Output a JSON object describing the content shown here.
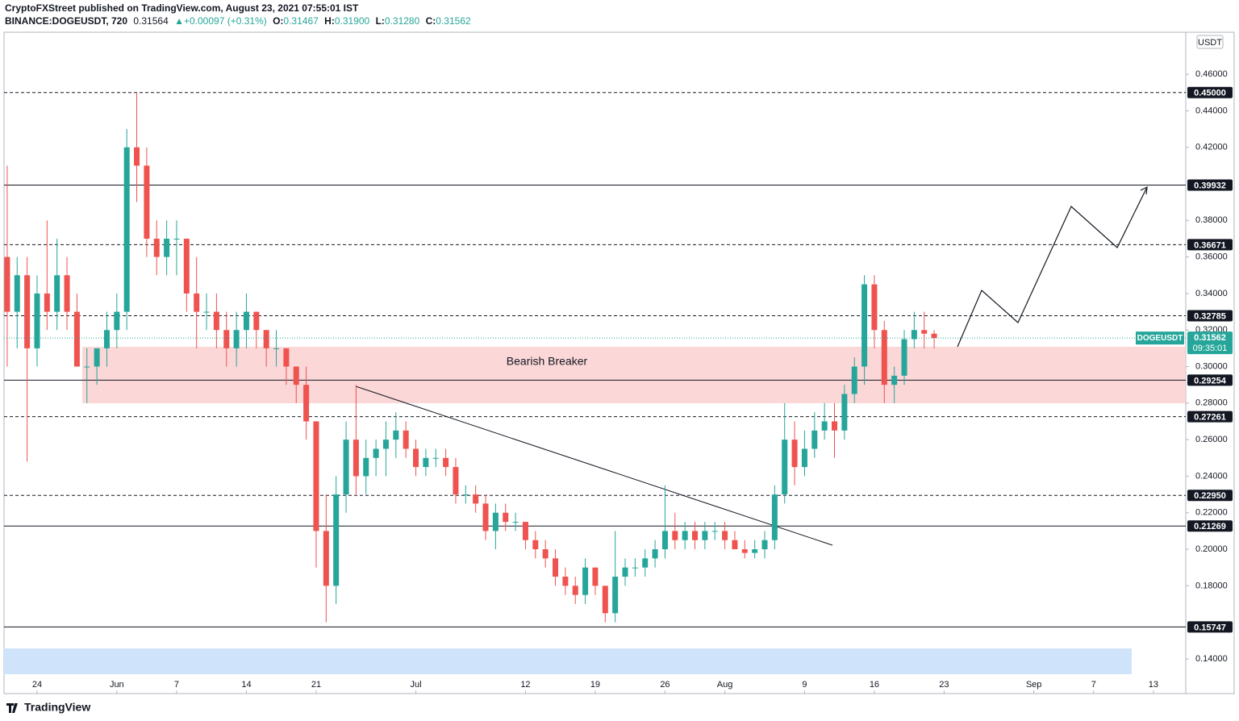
{
  "header": {
    "published": "CryptoFXStreet published on TradingView.com, August 23, 2021 07:55:01 IST",
    "symbol": "BINANCE:DOGEUSDT, 720",
    "price": "0.31564",
    "change": "▲+0.00097 (+0.31%)",
    "ohlc": [
      {
        "key": "O:",
        "value": "0.31467"
      },
      {
        "key": "H:",
        "value": "0.31900"
      },
      {
        "key": "L:",
        "value": "0.31280"
      },
      {
        "key": "C:",
        "value": "0.31562"
      }
    ]
  },
  "chart_data": {
    "type": "candlestick",
    "currency": "USDT",
    "up_color": "#26a69a",
    "down_color": "#ef5350",
    "x": [
      "2021-05-21",
      "2021-05-22",
      "2021-05-23",
      "2021-05-24",
      "2021-05-25",
      "2021-05-26",
      "2021-05-27",
      "2021-05-28",
      "2021-05-29",
      "2021-05-30",
      "2021-05-31",
      "2021-06-01",
      "2021-06-02",
      "2021-06-03",
      "2021-06-04",
      "2021-06-05",
      "2021-06-06",
      "2021-06-07",
      "2021-06-08",
      "2021-06-09",
      "2021-06-10",
      "2021-06-11",
      "2021-06-12",
      "2021-06-13",
      "2021-06-14",
      "2021-06-15",
      "2021-06-16",
      "2021-06-17",
      "2021-06-18",
      "2021-06-19",
      "2021-06-20",
      "2021-06-21",
      "2021-06-22",
      "2021-06-23",
      "2021-06-24",
      "2021-06-25",
      "2021-06-26",
      "2021-06-27",
      "2021-06-28",
      "2021-06-29",
      "2021-06-30",
      "2021-07-01",
      "2021-07-02",
      "2021-07-03",
      "2021-07-04",
      "2021-07-05",
      "2021-07-06",
      "2021-07-07",
      "2021-07-08",
      "2021-07-09",
      "2021-07-10",
      "2021-07-11",
      "2021-07-12",
      "2021-07-13",
      "2021-07-14",
      "2021-07-15",
      "2021-07-16",
      "2021-07-17",
      "2021-07-18",
      "2021-07-19",
      "2021-07-20",
      "2021-07-21",
      "2021-07-22",
      "2021-07-23",
      "2021-07-24",
      "2021-07-25",
      "2021-07-26",
      "2021-07-27",
      "2021-07-28",
      "2021-07-29",
      "2021-07-30",
      "2021-07-31",
      "2021-08-01",
      "2021-08-02",
      "2021-08-03",
      "2021-08-04",
      "2021-08-05",
      "2021-08-06",
      "2021-08-07",
      "2021-08-08",
      "2021-08-09",
      "2021-08-10",
      "2021-08-11",
      "2021-08-12",
      "2021-08-13",
      "2021-08-14",
      "2021-08-15",
      "2021-08-16",
      "2021-08-17",
      "2021-08-18",
      "2021-08-19",
      "2021-08-20",
      "2021-08-21",
      "2021-08-22"
    ],
    "open": [
      0.36,
      0.33,
      0.35,
      0.31,
      0.34,
      0.33,
      0.35,
      0.33,
      0.3,
      0.3,
      0.31,
      0.32,
      0.33,
      0.42,
      0.41,
      0.37,
      0.36,
      0.37,
      0.37,
      0.34,
      0.33,
      0.33,
      0.32,
      0.31,
      0.32,
      0.33,
      0.32,
      0.31,
      0.31,
      0.3,
      0.29,
      0.27,
      0.21,
      0.18,
      0.23,
      0.26,
      0.24,
      0.25,
      0.255,
      0.26,
      0.265,
      0.255,
      0.245,
      0.25,
      0.25,
      0.245,
      0.23,
      0.23,
      0.225,
      0.21,
      0.22,
      0.215,
      0.215,
      0.205,
      0.2,
      0.195,
      0.185,
      0.18,
      0.175,
      0.19,
      0.18,
      0.165,
      0.185,
      0.19,
      0.19,
      0.195,
      0.2,
      0.21,
      0.205,
      0.21,
      0.205,
      0.21,
      0.21,
      0.205,
      0.2,
      0.198,
      0.2,
      0.205,
      0.23,
      0.26,
      0.245,
      0.255,
      0.265,
      0.27,
      0.265,
      0.285,
      0.3,
      0.345,
      0.32,
      0.29,
      0.295,
      0.315,
      0.32,
      0.318
    ],
    "high": [
      0.41,
      0.36,
      0.36,
      0.35,
      0.38,
      0.37,
      0.36,
      0.34,
      0.31,
      0.31,
      0.33,
      0.34,
      0.43,
      0.45,
      0.42,
      0.38,
      0.38,
      0.38,
      0.37,
      0.36,
      0.34,
      0.34,
      0.33,
      0.33,
      0.34,
      0.33,
      0.32,
      0.32,
      0.31,
      0.3,
      0.3,
      0.27,
      0.23,
      0.24,
      0.27,
      0.29,
      0.26,
      0.26,
      0.27,
      0.275,
      0.27,
      0.26,
      0.255,
      0.255,
      0.255,
      0.25,
      0.235,
      0.235,
      0.23,
      0.225,
      0.225,
      0.22,
      0.215,
      0.21,
      0.205,
      0.2,
      0.19,
      0.185,
      0.195,
      0.19,
      0.18,
      0.21,
      0.195,
      0.195,
      0.2,
      0.205,
      0.235,
      0.22,
      0.215,
      0.215,
      0.215,
      0.215,
      0.215,
      0.21,
      0.205,
      0.205,
      0.21,
      0.235,
      0.28,
      0.27,
      0.265,
      0.275,
      0.28,
      0.28,
      0.29,
      0.305,
      0.35,
      0.35,
      0.325,
      0.3,
      0.32,
      0.33,
      0.33,
      0.32
    ],
    "low": [
      0.3,
      0.31,
      0.248,
      0.3,
      0.32,
      0.32,
      0.32,
      0.3,
      0.28,
      0.29,
      0.3,
      0.31,
      0.32,
      0.39,
      0.36,
      0.35,
      0.35,
      0.35,
      0.33,
      0.31,
      0.32,
      0.31,
      0.3,
      0.3,
      0.31,
      0.31,
      0.3,
      0.3,
      0.29,
      0.28,
      0.26,
      0.19,
      0.16,
      0.17,
      0.22,
      0.23,
      0.23,
      0.24,
      0.24,
      0.25,
      0.25,
      0.24,
      0.24,
      0.245,
      0.24,
      0.225,
      0.225,
      0.22,
      0.205,
      0.2,
      0.21,
      0.21,
      0.2,
      0.195,
      0.19,
      0.18,
      0.175,
      0.17,
      0.17,
      0.175,
      0.16,
      0.16,
      0.18,
      0.185,
      0.185,
      0.19,
      0.195,
      0.2,
      0.2,
      0.2,
      0.2,
      0.205,
      0.2,
      0.2,
      0.195,
      0.195,
      0.195,
      0.2,
      0.225,
      0.235,
      0.24,
      0.25,
      0.26,
      0.25,
      0.26,
      0.28,
      0.29,
      0.31,
      0.28,
      0.28,
      0.29,
      0.31,
      0.31,
      0.31
    ],
    "close": [
      0.33,
      0.35,
      0.31,
      0.34,
      0.33,
      0.35,
      0.33,
      0.3,
      0.3,
      0.31,
      0.32,
      0.33,
      0.42,
      0.41,
      0.37,
      0.36,
      0.37,
      0.37,
      0.34,
      0.33,
      0.33,
      0.32,
      0.31,
      0.32,
      0.33,
      0.32,
      0.31,
      0.31,
      0.3,
      0.29,
      0.27,
      0.21,
      0.18,
      0.23,
      0.26,
      0.24,
      0.25,
      0.255,
      0.26,
      0.265,
      0.255,
      0.245,
      0.25,
      0.25,
      0.245,
      0.23,
      0.23,
      0.225,
      0.21,
      0.22,
      0.215,
      0.215,
      0.205,
      0.2,
      0.195,
      0.185,
      0.18,
      0.175,
      0.19,
      0.18,
      0.165,
      0.185,
      0.19,
      0.19,
      0.195,
      0.2,
      0.21,
      0.205,
      0.21,
      0.205,
      0.21,
      0.21,
      0.205,
      0.2,
      0.198,
      0.2,
      0.205,
      0.23,
      0.26,
      0.245,
      0.255,
      0.265,
      0.27,
      0.265,
      0.285,
      0.3,
      0.345,
      0.32,
      0.29,
      0.295,
      0.315,
      0.32,
      0.318,
      0.31562
    ],
    "xlim": [
      "2021-05-21",
      "2021-09-16"
    ],
    "xticks": [
      {
        "value": "2021-05-24",
        "label": "24"
      },
      {
        "value": "2021-06-01",
        "label": "Jun"
      },
      {
        "value": "2021-06-07",
        "label": "7"
      },
      {
        "value": "2021-06-14",
        "label": "14"
      },
      {
        "value": "2021-06-21",
        "label": "21"
      },
      {
        "value": "2021-07-01",
        "label": "Jul"
      },
      {
        "value": "2021-07-12",
        "label": "12"
      },
      {
        "value": "2021-07-19",
        "label": "19"
      },
      {
        "value": "2021-07-26",
        "label": "26"
      },
      {
        "value": "2021-08-01",
        "label": "Aug"
      },
      {
        "value": "2021-08-09",
        "label": "9"
      },
      {
        "value": "2021-08-16",
        "label": "16"
      },
      {
        "value": "2021-08-23",
        "label": "23"
      },
      {
        "value": "2021-09-01",
        "label": "Sep"
      },
      {
        "value": "2021-09-07",
        "label": "7"
      },
      {
        "value": "2021-09-13",
        "label": "13"
      }
    ],
    "ylim": [
      0.121,
      0.483
    ],
    "yticks": [
      {
        "value": 0.14,
        "label": "0.14000"
      },
      {
        "value": 0.18,
        "label": "0.18000"
      },
      {
        "value": 0.2,
        "label": "0.20000"
      },
      {
        "value": 0.22,
        "label": "0.22000"
      },
      {
        "value": 0.24,
        "label": "0.24000"
      },
      {
        "value": 0.26,
        "label": "0.26000"
      },
      {
        "value": 0.28,
        "label": "0.28000"
      },
      {
        "value": 0.3,
        "label": "0.30000"
      },
      {
        "value": 0.32,
        "label": "0.32000"
      },
      {
        "value": 0.34,
        "label": "0.34000"
      },
      {
        "value": 0.36,
        "label": "0.36000"
      },
      {
        "value": 0.38,
        "label": "0.38000"
      },
      {
        "value": 0.42,
        "label": "0.42000"
      },
      {
        "value": 0.44,
        "label": "0.44000"
      },
      {
        "value": 0.46,
        "label": "0.46000"
      }
    ],
    "levels": [
      {
        "value": 0.45,
        "label": "0.45000",
        "style": "dashed"
      },
      {
        "value": 0.39932,
        "label": "0.39932",
        "style": "solid"
      },
      {
        "value": 0.36671,
        "label": "0.36671",
        "style": "dashed"
      },
      {
        "value": 0.32785,
        "label": "0.32785",
        "style": "dashed"
      },
      {
        "value": 0.29254,
        "label": "0.29254",
        "style": "solid"
      },
      {
        "value": 0.27261,
        "label": "0.27261",
        "style": "dashed"
      },
      {
        "value": 0.2295,
        "label": "0.22950",
        "style": "dashed"
      },
      {
        "value": 0.21269,
        "label": "0.21269",
        "style": "solid"
      },
      {
        "value": 0.15747,
        "label": "0.15747",
        "style": "solid"
      }
    ],
    "annotation": "Bearish Breaker",
    "last_price": {
      "name": "DOGEUSDT",
      "value": 0.31562,
      "label": "0.31562",
      "countdown": "09:35:01"
    }
  },
  "footer": {
    "logo": "TradingView"
  }
}
